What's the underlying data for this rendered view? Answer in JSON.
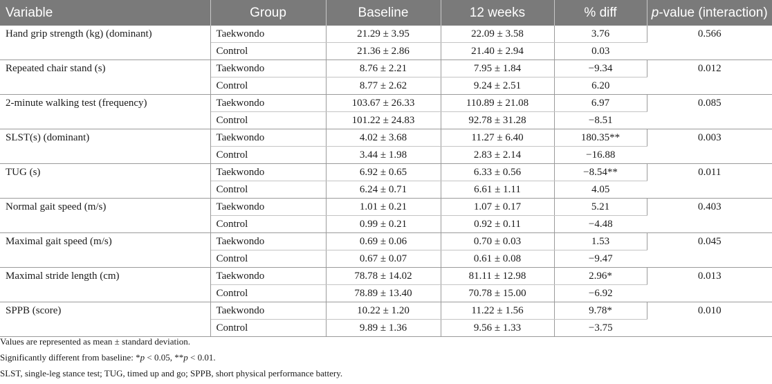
{
  "header": {
    "variable": "Variable",
    "group": "Group",
    "baseline": "Baseline",
    "week12": "12 weeks",
    "pct_diff": "% diff",
    "pvalue_p": "p",
    "pvalue_rest": "-value (interaction)"
  },
  "rows": [
    {
      "variable": "Hand grip strength (kg) (dominant)",
      "p": "0.566",
      "tkd": {
        "group": "Taekwondo",
        "baseline": "21.29 ± 3.95",
        "w12": "22.09 ± 3.58",
        "diff": "3.76"
      },
      "ctl": {
        "group": "Control",
        "baseline": "21.36 ± 2.86",
        "w12": "21.40 ± 2.94",
        "diff": "0.03"
      }
    },
    {
      "variable": "Repeated chair stand (s)",
      "p": "0.012",
      "tkd": {
        "group": "Taekwondo",
        "baseline": "8.76 ± 2.21",
        "w12": "7.95 ± 1.84",
        "diff": "−9.34"
      },
      "ctl": {
        "group": "Control",
        "baseline": "8.77 ± 2.62",
        "w12": "9.24 ± 2.51",
        "diff": "6.20"
      }
    },
    {
      "variable": "2-minute walking test (frequency)",
      "p": "0.085",
      "tkd": {
        "group": "Taekwondo",
        "baseline": "103.67 ± 26.33",
        "w12": "110.89 ± 21.08",
        "diff": "6.97"
      },
      "ctl": {
        "group": "Control",
        "baseline": "101.22 ± 24.83",
        "w12": "92.78 ± 31.28",
        "diff": "−8.51"
      }
    },
    {
      "variable": "SLST(s) (dominant)",
      "p": "0.003",
      "tkd": {
        "group": "Taekwondo",
        "baseline": "4.02 ± 3.68",
        "w12": "11.27 ± 6.40",
        "diff": "180.35**"
      },
      "ctl": {
        "group": "Control",
        "baseline": "3.44 ± 1.98",
        "w12": "2.83 ± 2.14",
        "diff": "−16.88"
      }
    },
    {
      "variable": "TUG (s)",
      "p": "0.011",
      "tkd": {
        "group": "Taekwondo",
        "baseline": "6.92 ± 0.65",
        "w12": "6.33 ± 0.56",
        "diff": "−8.54**"
      },
      "ctl": {
        "group": "Control",
        "baseline": "6.24 ± 0.71",
        "w12": "6.61 ± 1.11",
        "diff": "4.05"
      }
    },
    {
      "variable": "Normal gait speed (m/s)",
      "p": "0.403",
      "tkd": {
        "group": "Taekwondo",
        "baseline": "1.01 ± 0.21",
        "w12": "1.07 ± 0.17",
        "diff": "5.21"
      },
      "ctl": {
        "group": "Control",
        "baseline": "0.99 ± 0.21",
        "w12": "0.92 ± 0.11",
        "diff": "−4.48"
      }
    },
    {
      "variable": "Maximal gait speed (m/s)",
      "p": "0.045",
      "tkd": {
        "group": "Taekwondo",
        "baseline": "0.69 ± 0.06",
        "w12": "0.70 ± 0.03",
        "diff": "1.53"
      },
      "ctl": {
        "group": "Control",
        "baseline": "0.67 ± 0.07",
        "w12": "0.61 ± 0.08",
        "diff": "−9.47"
      }
    },
    {
      "variable": "Maximal stride length (cm)",
      "p": "0.013",
      "tkd": {
        "group": "Taekwondo",
        "baseline": "78.78 ± 14.02",
        "w12": "81.11 ± 12.98",
        "diff": "2.96*"
      },
      "ctl": {
        "group": "Control",
        "baseline": "78.89 ± 13.40",
        "w12": "70.78 ± 15.00",
        "diff": "−6.92"
      }
    },
    {
      "variable": "SPPB (score)",
      "p": "0.010",
      "tkd": {
        "group": "Taekwondo",
        "baseline": "10.22 ± 1.20",
        "w12": "11.22 ± 1.56",
        "diff": "9.78*"
      },
      "ctl": {
        "group": "Control",
        "baseline": "9.89 ± 1.36",
        "w12": "9.56 ± 1.33",
        "diff": "−3.75"
      }
    }
  ],
  "notes": {
    "line1": "Values are represented as mean ± standard deviation.",
    "line2_a": "Significantly different from baseline: *",
    "line2_p1": "p",
    "line2_b": " < 0.05, **",
    "line2_p2": "p",
    "line2_c": " < 0.01.",
    "line3": "SLST, single-leg stance test; TUG, timed up and go; SPPB, short physical performance battery."
  }
}
